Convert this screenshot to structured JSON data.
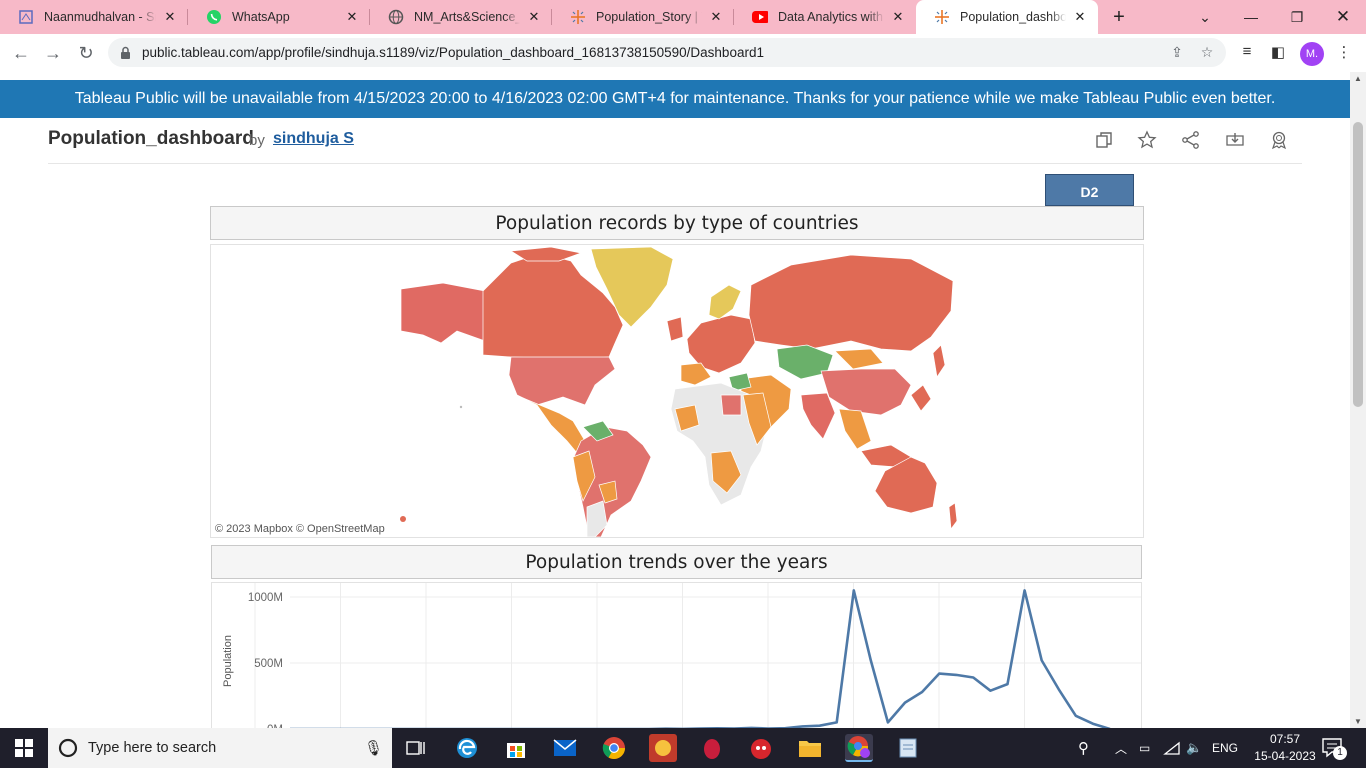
{
  "browser": {
    "tabs": [
      {
        "title": "Naanmudhalvan - Smart",
        "icon": "document-favicon",
        "color": "#5b6bbf"
      },
      {
        "title": "WhatsApp",
        "icon": "whatsapp-favicon",
        "color": "#25d366"
      },
      {
        "title": "NM_Arts&Science_Pro",
        "icon": "globe-favicon",
        "color": "#555555"
      },
      {
        "title": "Population_Story | Tableau",
        "icon": "tableau-favicon",
        "color": "#e97627"
      },
      {
        "title": "Data Analytics with Tableau",
        "icon": "youtube-favicon",
        "color": "#ff0000"
      },
      {
        "title": "Population_dashboard",
        "icon": "tableau-favicon",
        "color": "#e97627"
      }
    ],
    "url": "public.tableau.com/app/profile/sindhuja.s1189/viz/Population_dashboard_16813738150590/Dashboard1",
    "profile_initial": "M."
  },
  "page": {
    "banner": "Tableau Public will be unavailable from 4/15/2023 20:00 to 4/16/2023 02:00 GMT+4 for maintenance. Thanks for your patience while we make Tableau Public even better.",
    "viz_title": "Population_dashboard",
    "by_label": "by",
    "author": "sindhuja S",
    "dashboard_tab": "D2"
  },
  "map_panel": {
    "title": "Population records by type of countries",
    "attribution": "© 2023 Mapbox  © OpenStreetMap"
  },
  "trend_panel": {
    "title": "Population trends over the years"
  },
  "chart_data": {
    "type": "line",
    "title": "Population trends over the years",
    "xlabel": "",
    "ylabel": "Population",
    "y_tick_labels": [
      "1000M",
      "500M",
      "0M"
    ],
    "y_ticks": [
      1000,
      500,
      0
    ],
    "ylim": [
      0,
      1050
    ],
    "x_index": [
      0,
      1,
      2,
      3,
      4,
      5,
      6,
      7,
      8,
      9,
      10,
      11,
      12,
      13,
      14,
      15,
      16,
      17,
      18,
      19,
      20,
      21,
      22,
      23,
      24,
      25,
      26,
      27,
      28,
      29,
      30,
      31,
      32,
      33,
      34,
      35,
      36,
      37,
      38,
      39,
      40,
      41,
      42,
      43,
      44,
      45,
      46,
      47,
      48
    ],
    "series": [
      {
        "color": "#4e79a7",
        "values": [
          0,
          0,
          0,
          0,
          0,
          0,
          0,
          0,
          0,
          0,
          0,
          0,
          0,
          0,
          0,
          0,
          0,
          0,
          0,
          0,
          0,
          0,
          2,
          1,
          3,
          5,
          3,
          8,
          4,
          6,
          20,
          25,
          50,
          1050,
          520,
          50,
          200,
          280,
          420,
          410,
          390,
          290,
          340,
          1050,
          520,
          300,
          100,
          40,
          0
        ]
      }
    ],
    "grid": true
  },
  "taskbar": {
    "search_placeholder": "Type here to search",
    "language": "ENG",
    "time": "07:57",
    "date": "15-04-2023",
    "notification_count": "1"
  }
}
